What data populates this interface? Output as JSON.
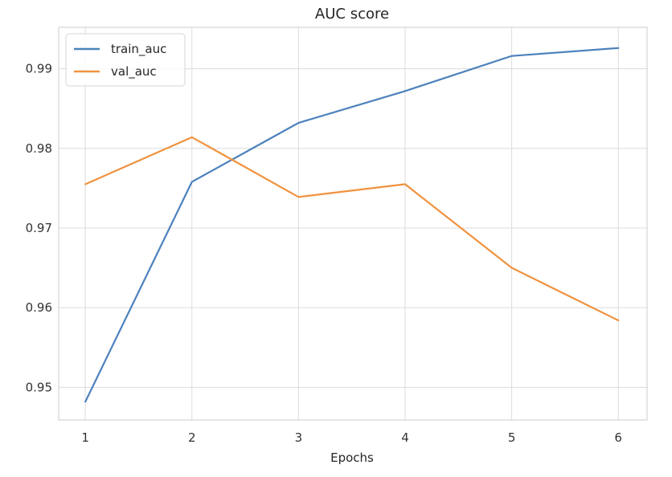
{
  "chart_data": {
    "type": "line",
    "title": "AUC score",
    "xlabel": "Epochs",
    "ylabel": "",
    "x": [
      1,
      2,
      3,
      4,
      5,
      6
    ],
    "xticks": [
      "1",
      "2",
      "3",
      "4",
      "5",
      "6"
    ],
    "yticks": [
      "0.95",
      "0.96",
      "0.97",
      "0.98",
      "0.99"
    ],
    "ytick_values": [
      0.95,
      0.96,
      0.97,
      0.98,
      0.99
    ],
    "xlim": [
      0.75,
      6.27
    ],
    "ylim": [
      0.9459,
      0.9952
    ],
    "grid": true,
    "legend_position": "top-left",
    "series": [
      {
        "name": "train_auc",
        "color": "#4c81bd",
        "values": [
          0.9482,
          0.9758,
          0.9832,
          0.9872,
          0.9916,
          0.9926
        ]
      },
      {
        "name": "val_auc",
        "color": "#f0923f",
        "values": [
          0.9755,
          0.9814,
          0.9739,
          0.9755,
          0.965,
          0.9584
        ]
      }
    ]
  }
}
